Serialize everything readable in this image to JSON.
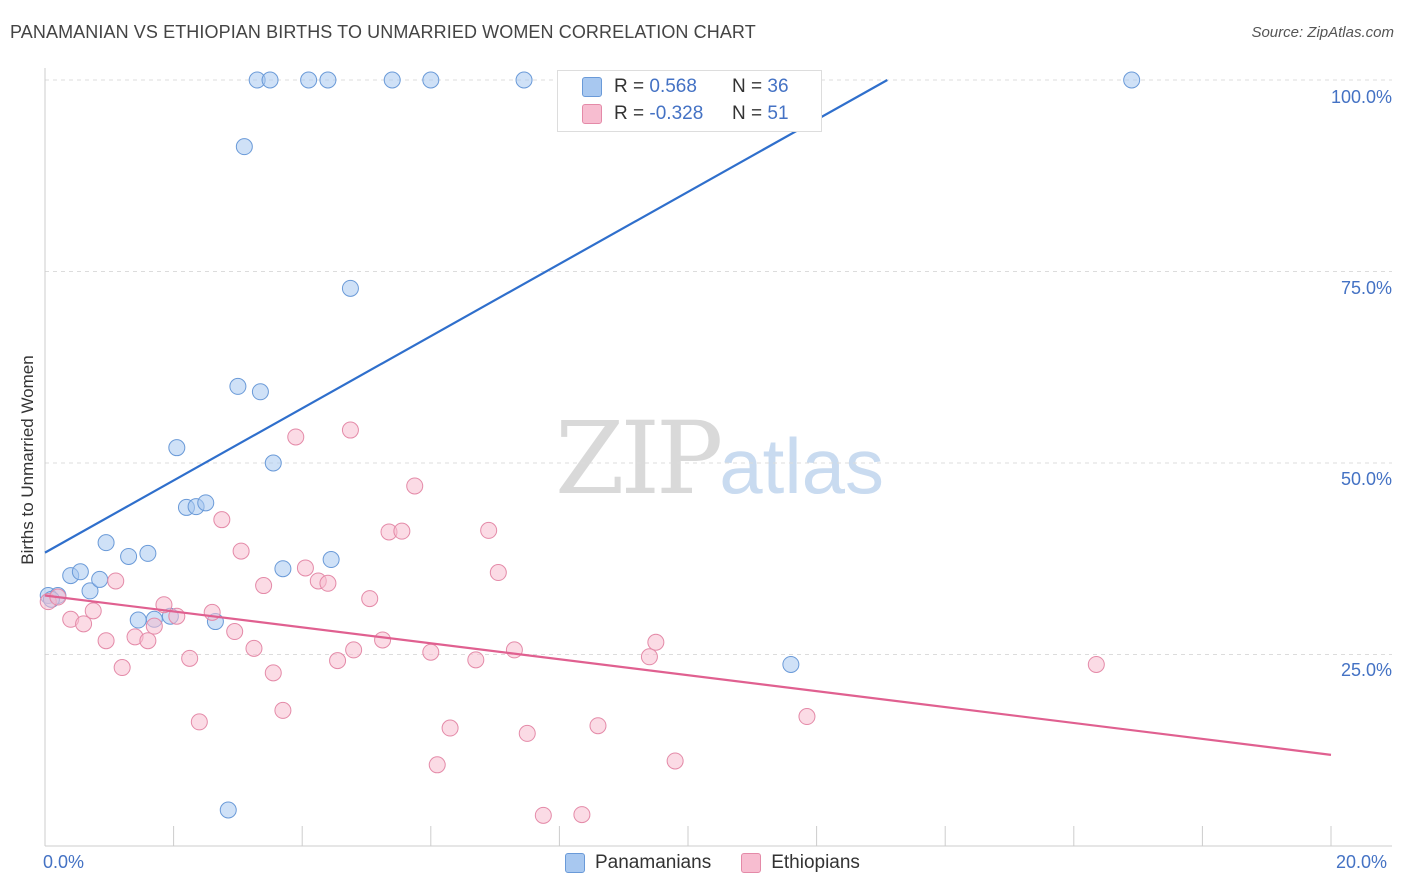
{
  "header": {
    "title": "PANAMANIAN VS ETHIOPIAN BIRTHS TO UNMARRIED WOMEN CORRELATION CHART",
    "source": "Source: ZipAtlas.com"
  },
  "watermark": {
    "zip": "ZIP",
    "atlas": "atlas"
  },
  "legend": {
    "rows": [
      {
        "r_label": "R =",
        "r_value": "0.568",
        "n_label": "N =",
        "n_value": "36",
        "color": "#a8c8f0",
        "stroke": "#6a9ad8"
      },
      {
        "r_label": "R =",
        "r_value": "-0.328",
        "n_label": "N =",
        "n_value": "51",
        "color": "#f7bdd0",
        "stroke": "#e48aa8"
      }
    ]
  },
  "bottom_legend": {
    "items": [
      "Panamanians",
      "Ethiopians"
    ]
  },
  "chart_data": {
    "type": "scatter",
    "title": "PANAMANIAN VS ETHIOPIAN BIRTHS TO UNMARRIED WOMEN CORRELATION CHART",
    "ylabel": "Births to Unmarried Women",
    "xlabel": "",
    "xlim": [
      0,
      20
    ],
    "ylim": [
      0,
      105
    ],
    "x_ticks": [
      "0.0%",
      "20.0%"
    ],
    "y_ticks": [
      "100.0%",
      "75.0%",
      "50.0%",
      "25.0%"
    ],
    "y_tick_values": [
      100,
      75,
      50,
      25
    ],
    "grid": "horizontal dashed",
    "legend_position": "top-center",
    "series": [
      {
        "name": "Panamanians",
        "color": "#a8c8f0",
        "stroke": "#6a9ad8",
        "line_color": "#2f6fcc",
        "trend": {
          "x": [
            0,
            13.1
          ],
          "y": [
            38.3,
            100.0
          ]
        },
        "points": [
          [
            0.05,
            32.7
          ],
          [
            0.2,
            32.7
          ],
          [
            0.4,
            35.3
          ],
          [
            0.55,
            35.8
          ],
          [
            0.7,
            33.3
          ],
          [
            0.85,
            34.8
          ],
          [
            0.95,
            39.6
          ],
          [
            1.3,
            37.8
          ],
          [
            1.6,
            38.2
          ],
          [
            1.45,
            29.5
          ],
          [
            1.7,
            29.6
          ],
          [
            1.95,
            30.0
          ],
          [
            2.05,
            52.0
          ],
          [
            2.2,
            44.2
          ],
          [
            2.35,
            44.3
          ],
          [
            2.5,
            44.8
          ],
          [
            2.65,
            29.3
          ],
          [
            2.85,
            4.7
          ],
          [
            3.0,
            60.0
          ],
          [
            3.1,
            91.3
          ],
          [
            3.3,
            100.0
          ],
          [
            3.35,
            59.3
          ],
          [
            3.5,
            100.0
          ],
          [
            3.55,
            50.0
          ],
          [
            3.7,
            36.2
          ],
          [
            4.1,
            100.0
          ],
          [
            4.4,
            100.0
          ],
          [
            4.45,
            37.4
          ],
          [
            4.75,
            72.8
          ],
          [
            5.4,
            100.0
          ],
          [
            6.0,
            100.0
          ],
          [
            7.45,
            100.0
          ],
          [
            9.7,
            100.0
          ],
          [
            11.6,
            23.7
          ],
          [
            16.9,
            100.0
          ],
          [
            0.1,
            32.2
          ]
        ]
      },
      {
        "name": "Ethiopians",
        "color": "#f7bdd0",
        "stroke": "#e48aa8",
        "line_color": "#e06090",
        "trend": {
          "x": [
            0,
            20
          ],
          "y": [
            32.7,
            11.9
          ]
        },
        "points": [
          [
            0.05,
            31.9
          ],
          [
            0.2,
            32.5
          ],
          [
            0.4,
            29.6
          ],
          [
            0.6,
            29.0
          ],
          [
            0.75,
            30.7
          ],
          [
            0.95,
            26.8
          ],
          [
            1.1,
            34.6
          ],
          [
            1.2,
            23.3
          ],
          [
            1.4,
            27.3
          ],
          [
            1.6,
            26.8
          ],
          [
            1.7,
            28.7
          ],
          [
            1.85,
            31.5
          ],
          [
            2.05,
            30.0
          ],
          [
            2.25,
            24.5
          ],
          [
            2.4,
            16.2
          ],
          [
            2.6,
            30.5
          ],
          [
            2.75,
            42.6
          ],
          [
            2.95,
            28.0
          ],
          [
            3.05,
            38.5
          ],
          [
            3.25,
            25.8
          ],
          [
            3.4,
            34.0
          ],
          [
            3.55,
            22.6
          ],
          [
            3.7,
            17.7
          ],
          [
            3.9,
            53.4
          ],
          [
            4.05,
            36.3
          ],
          [
            4.25,
            34.6
          ],
          [
            4.4,
            34.3
          ],
          [
            4.55,
            24.2
          ],
          [
            4.75,
            54.3
          ],
          [
            4.8,
            25.6
          ],
          [
            5.05,
            32.3
          ],
          [
            5.25,
            26.9
          ],
          [
            5.35,
            41.0
          ],
          [
            5.55,
            41.1
          ],
          [
            5.75,
            47.0
          ],
          [
            6.0,
            25.3
          ],
          [
            6.1,
            10.6
          ],
          [
            6.3,
            15.4
          ],
          [
            6.7,
            24.3
          ],
          [
            6.9,
            41.2
          ],
          [
            7.05,
            35.7
          ],
          [
            7.3,
            25.6
          ],
          [
            7.5,
            14.7
          ],
          [
            7.75,
            4.0
          ],
          [
            8.35,
            4.1
          ],
          [
            8.6,
            15.7
          ],
          [
            9.4,
            24.7
          ],
          [
            9.5,
            26.6
          ],
          [
            9.8,
            11.1
          ],
          [
            11.85,
            16.9
          ],
          [
            16.35,
            23.7
          ]
        ]
      }
    ]
  }
}
